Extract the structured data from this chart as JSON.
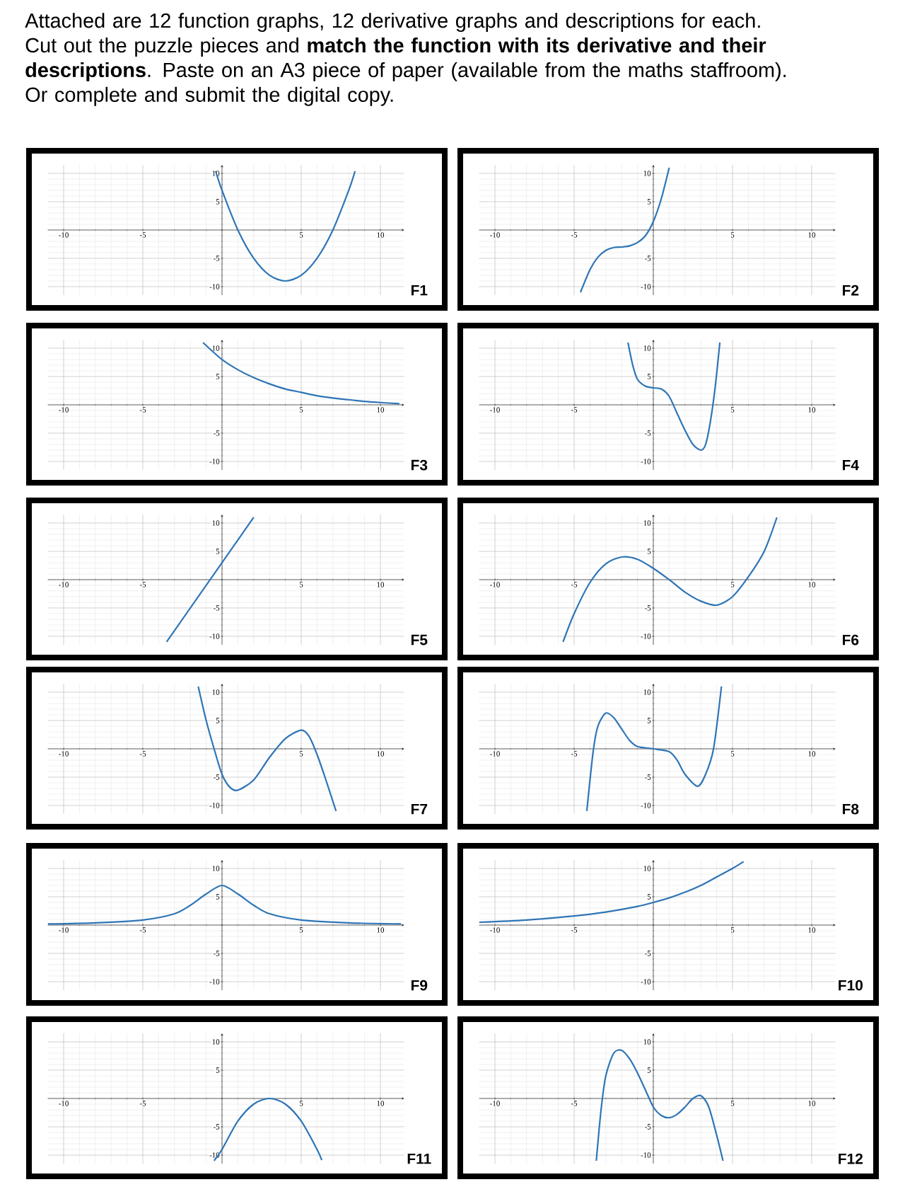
{
  "chart_data": [
    {
      "type": "line",
      "title": "F1",
      "annotations": [
        "Attached are 12 function graphs, 12 derivative graphs and descriptions for each. Cut out the puzzle pieces and **match the function with its derivative and their descriptions**. Paste on an A3 piece of paper (available from the maths staffroom). Or complete and submit the digital copy."
      ],
      "x": [
        -0.4,
        0,
        1,
        2,
        3,
        4,
        5,
        6,
        7,
        8,
        8.4
      ],
      "values": [
        10.4,
        7,
        0,
        -5,
        -8,
        -9,
        -8,
        -5,
        0,
        7,
        10.4
      ],
      "color": "#2e75b6",
      "xlim": [
        -11,
        11.5
      ],
      "ylim": [
        -11.5,
        11.5
      ],
      "xticks": [
        -10,
        -5,
        5,
        10
      ],
      "yticks": [
        -10,
        -5,
        5,
        10
      ],
      "grid": true
    },
    {
      "type": "line",
      "title": "F2",
      "x": [
        -4.6,
        -4,
        -3.5,
        -3,
        -2.5,
        -2,
        -1.5,
        -1,
        -0.5,
        0,
        0.5,
        1
      ],
      "values": [
        -11,
        -7,
        -4.8,
        -3.6,
        -3.1,
        -3,
        -2.8,
        -2.2,
        -1,
        1.5,
        5.5,
        11
      ],
      "color": "#2e75b6",
      "xlim": [
        -11,
        11.5
      ],
      "ylim": [
        -11.5,
        11.5
      ],
      "xticks": [
        -10,
        -5,
        5,
        10
      ],
      "yticks": [
        -10,
        -5,
        5,
        10
      ],
      "grid": true
    },
    {
      "type": "line",
      "title": "F3",
      "x": [
        -1.2,
        0,
        1,
        2,
        3,
        4,
        5,
        6,
        7,
        8,
        9,
        10,
        11.2
      ],
      "values": [
        11,
        8,
        6.2,
        4.8,
        3.7,
        2.8,
        2.2,
        1.6,
        1.2,
        0.9,
        0.6,
        0.4,
        0.2
      ],
      "color": "#2e75b6",
      "xlim": [
        -11,
        11.5
      ],
      "ylim": [
        -11.5,
        11.5
      ],
      "xticks": [
        -10,
        -5,
        5,
        10
      ],
      "yticks": [
        -10,
        -5,
        5,
        10
      ],
      "grid": true
    },
    {
      "type": "line",
      "title": "F4",
      "x": [
        -1.6,
        -1.3,
        -1,
        -0.5,
        0,
        0.5,
        1,
        1.5,
        2,
        2.5,
        3,
        3.3,
        3.6,
        3.9,
        4.2
      ],
      "values": [
        11,
        7,
        4.5,
        3.3,
        3,
        2.8,
        1.5,
        -1.5,
        -4.5,
        -7,
        -8,
        -7,
        -3,
        3,
        11
      ],
      "color": "#2e75b6",
      "xlim": [
        -11,
        11.5
      ],
      "ylim": [
        -11.5,
        11.5
      ],
      "xticks": [
        -10,
        -5,
        5,
        10
      ],
      "yticks": [
        -10,
        -5,
        5,
        10
      ],
      "grid": true
    },
    {
      "type": "line",
      "title": "F5",
      "x": [
        -3.5,
        2
      ],
      "values": [
        -11,
        11
      ],
      "color": "#2e75b6",
      "xlim": [
        -11,
        11.5
      ],
      "ylim": [
        -11.5,
        11.5
      ],
      "xticks": [
        -10,
        -5,
        5,
        10
      ],
      "yticks": [
        -10,
        -5,
        5,
        10
      ],
      "grid": true
    },
    {
      "type": "line",
      "title": "F6",
      "x": [
        -5.7,
        -5,
        -4,
        -3,
        -2,
        -1,
        0,
        1,
        2,
        3,
        4,
        5,
        6,
        7,
        7.8
      ],
      "values": [
        -11,
        -6,
        -0.5,
        2.8,
        4,
        3.6,
        2,
        0,
        -2.2,
        -3.8,
        -4.5,
        -3,
        0.5,
        5,
        11
      ],
      "color": "#2e75b6",
      "xlim": [
        -11,
        11.5
      ],
      "ylim": [
        -11.5,
        11.5
      ],
      "xticks": [
        -10,
        -5,
        5,
        10
      ],
      "yticks": [
        -10,
        -5,
        5,
        10
      ],
      "grid": true
    },
    {
      "type": "line",
      "title": "F7",
      "x": [
        -1.5,
        -1,
        -0.5,
        0,
        0.5,
        1,
        2,
        3,
        4,
        5,
        5.5,
        6,
        6.5,
        7.2
      ],
      "values": [
        11,
        5,
        0,
        -4.5,
        -6.8,
        -7.3,
        -5.5,
        -1.5,
        1.8,
        3.3,
        2.2,
        -1,
        -5,
        -11
      ],
      "color": "#2e75b6",
      "xlim": [
        -11,
        11.5
      ],
      "ylim": [
        -11.5,
        11.5
      ],
      "xticks": [
        -10,
        -5,
        5,
        10
      ],
      "yticks": [
        -10,
        -5,
        5,
        10
      ],
      "grid": true
    },
    {
      "type": "line",
      "title": "F8",
      "x": [
        -4.2,
        -3.8,
        -3.5,
        -3,
        -2.5,
        -2,
        -1.5,
        -1,
        0,
        1,
        1.5,
        2,
        2.8,
        3.3,
        3.8,
        4.3
      ],
      "values": [
        -11,
        -0.5,
        4,
        6.3,
        5.5,
        3.5,
        1.5,
        0.4,
        0,
        -0.5,
        -2,
        -4.5,
        -6.6,
        -4.5,
        0,
        11
      ],
      "color": "#2e75b6",
      "xlim": [
        -11,
        11.5
      ],
      "ylim": [
        -11.5,
        11.5
      ],
      "xticks": [
        -10,
        -5,
        5,
        10
      ],
      "yticks": [
        -10,
        -5,
        5,
        10
      ],
      "grid": true
    },
    {
      "type": "line",
      "title": "F9",
      "x": [
        -11,
        -8,
        -5,
        -3,
        -2,
        -1,
        0,
        1,
        2,
        3,
        5,
        8,
        11.3
      ],
      "values": [
        0.2,
        0.4,
        0.9,
        2,
        3.5,
        5.5,
        7,
        5.5,
        3.5,
        2,
        0.9,
        0.4,
        0.2
      ],
      "color": "#2e75b6",
      "xlim": [
        -11,
        11.5
      ],
      "ylim": [
        -11.5,
        11.5
      ],
      "xticks": [
        -10,
        -5,
        5,
        10
      ],
      "yticks": [
        -10,
        -5,
        5,
        10
      ],
      "grid": true
    },
    {
      "type": "line",
      "title": "F10",
      "x": [
        -11,
        -8,
        -5,
        -3,
        -1,
        0,
        1,
        2,
        3,
        4,
        5,
        5.7
      ],
      "values": [
        0.5,
        0.9,
        1.6,
        2.3,
        3.3,
        4,
        4.8,
        5.8,
        7,
        8.5,
        10,
        11.2
      ],
      "color": "#2e75b6",
      "xlim": [
        -11,
        11.5
      ],
      "ylim": [
        -11.5,
        11.5
      ],
      "xticks": [
        -10,
        -5,
        5,
        10
      ],
      "yticks": [
        -10,
        -5,
        5,
        10
      ],
      "grid": true
    },
    {
      "type": "line",
      "title": "F11",
      "x": [
        -0.5,
        0,
        1,
        2,
        3,
        4,
        5,
        6,
        6.3
      ],
      "values": [
        -11,
        -9,
        -4,
        -1,
        0,
        -1,
        -4,
        -9,
        -10.9
      ],
      "color": "#2e75b6",
      "xlim": [
        -11,
        11.5
      ],
      "ylim": [
        -11.5,
        11.5
      ],
      "xticks": [
        -10,
        -5,
        5,
        10
      ],
      "yticks": [
        -10,
        -5,
        5,
        10
      ],
      "grid": true
    },
    {
      "type": "line",
      "title": "F12",
      "x": [
        -3.6,
        -3.3,
        -3,
        -2.5,
        -2,
        -1.5,
        -1,
        -0.5,
        0,
        0.5,
        1,
        1.5,
        2,
        2.5,
        3,
        3.5,
        4,
        4.4
      ],
      "values": [
        -11,
        -2,
        4,
        8,
        8.5,
        7,
        4.5,
        1.5,
        -1.5,
        -3,
        -3.4,
        -2.8,
        -1.5,
        0,
        0.5,
        -1.5,
        -6.5,
        -11
      ],
      "color": "#2e75b6",
      "xlim": [
        -11,
        11.5
      ],
      "ylim": [
        -11.5,
        11.5
      ],
      "xticks": [
        -10,
        -5,
        5,
        10
      ],
      "yticks": [
        -10,
        -5,
        5,
        10
      ],
      "grid": true
    }
  ]
}
